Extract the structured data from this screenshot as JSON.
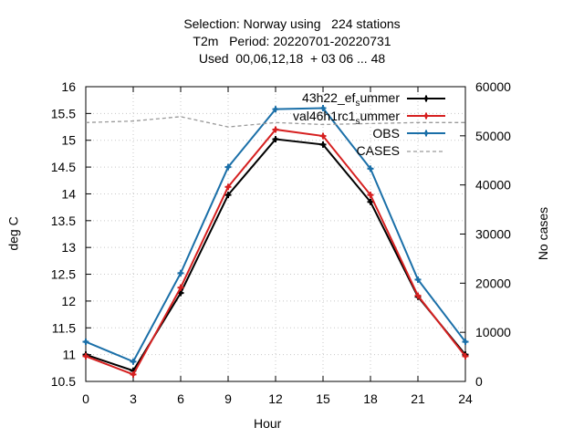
{
  "chart_data": {
    "type": "line",
    "title_lines": [
      "Selection: Norway using   224 stations",
      "T2m   Period: 20220701-20220731",
      "Used  00,06,12,18  + 03 06 ... 48"
    ],
    "xlabel": "Hour",
    "ylabel": "deg C",
    "y2label": "No cases",
    "x": [
      0,
      3,
      6,
      9,
      12,
      15,
      18,
      21,
      24
    ],
    "xticks": [
      "0",
      "3",
      "6",
      "9",
      "12",
      "15",
      "18",
      "21",
      "24"
    ],
    "ylim": [
      10.5,
      16
    ],
    "yticks": [
      "10.5",
      "11",
      "11.5",
      "12",
      "12.5",
      "13",
      "13.5",
      "14",
      "14.5",
      "15",
      "15.5",
      "16"
    ],
    "y2lim": [
      0,
      60000
    ],
    "y2ticks": [
      "0",
      "10000",
      "20000",
      "30000",
      "40000",
      "50000",
      "60000"
    ],
    "grid": true,
    "legend_position": "top-right",
    "series": [
      {
        "name": "43h22_ef_summer",
        "name_main": "43h22_ef",
        "name_sub": "s",
        "name_tail": "ummer",
        "color": "#000000",
        "axis": "y",
        "values": [
          11.0,
          10.7,
          12.15,
          13.98,
          15.02,
          14.92,
          13.85,
          12.08,
          11.0
        ]
      },
      {
        "name": "val46h1rc1_summer",
        "name_main": "val46h1rc1",
        "name_sub": "s",
        "name_tail": "ummer",
        "color": "#d62020",
        "axis": "y",
        "values": [
          10.97,
          10.63,
          12.25,
          14.13,
          15.2,
          15.08,
          13.98,
          12.1,
          10.97
        ]
      },
      {
        "name": "OBS",
        "color": "#1a6fa8",
        "axis": "y",
        "values": [
          11.24,
          10.87,
          12.52,
          14.5,
          15.58,
          15.6,
          14.47,
          12.4,
          11.24
        ]
      },
      {
        "name": "CASES",
        "color": "#9a9a9a",
        "axis": "y2",
        "dashed": true,
        "values": [
          52700,
          53000,
          53900,
          51800,
          52700,
          52300,
          52500,
          52700,
          52700
        ]
      }
    ]
  }
}
